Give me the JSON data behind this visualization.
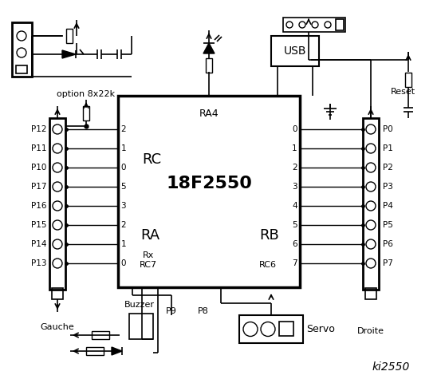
{
  "bg_color": "#ffffff",
  "line_color": "#000000",
  "title": "ki2550",
  "chip_label": "18F2550",
  "chip_sublabel": "RA4",
  "rc_label": "RC",
  "ra_label": "RA",
  "rb_label": "RB",
  "rc_pins": [
    "2",
    "1",
    "0",
    "5",
    "3",
    "2",
    "1",
    "0"
  ],
  "rb_pins": [
    "0",
    "1",
    "2",
    "3",
    "4",
    "5",
    "6",
    "7"
  ],
  "left_labels": [
    "P12",
    "P11",
    "P10",
    "P17",
    "P16",
    "P15",
    "P14",
    "P13"
  ],
  "right_labels": [
    "P0",
    "P1",
    "P2",
    "P3",
    "P4",
    "P5",
    "P6",
    "P7"
  ],
  "left_connector_label": "Gauche",
  "right_connector_label": "Droite",
  "option_label": "option 8x22k",
  "rx_label": "Rx",
  "rc7_label": "RC7",
  "rc6_label": "RC6",
  "usb_label": "USB",
  "reset_label": "Reset",
  "buzzer_label": "Buzzer",
  "p9_label": "P9",
  "p8_label": "P8",
  "servo_label": "Servo"
}
